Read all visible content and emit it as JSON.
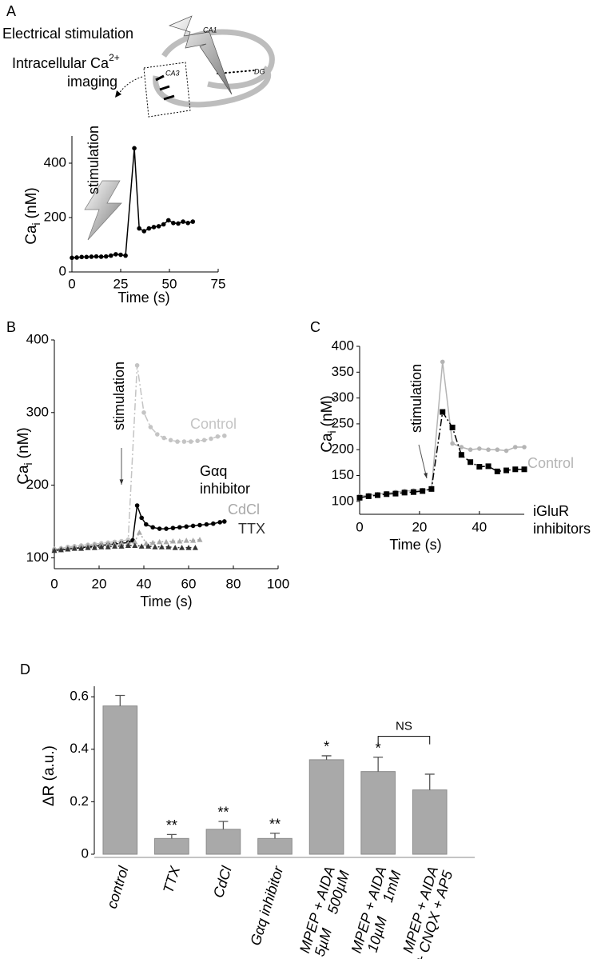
{
  "schematic": {
    "stimulation_label": "Electrical stimulation",
    "imaging_label": [
      "Intracellular Ca",
      "2+",
      "imaging"
    ],
    "regions": [
      "CA1",
      "DG",
      "CA3"
    ]
  },
  "chart_data": [
    {
      "panel": "A",
      "type": "line",
      "annotation": "stimulation",
      "xlabel": "Time (s)",
      "ylabel": {
        "text": "Ca",
        "sub": "i",
        "unit": "(nM)"
      },
      "xlim": [
        0,
        75
      ],
      "xticks": [
        0,
        25,
        50,
        75
      ],
      "ylim": [
        0,
        500
      ],
      "yticks": [
        0,
        200,
        400
      ],
      "series": [
        {
          "color": "#000000",
          "marker": "circle",
          "x": [
            0,
            2.5,
            5,
            7.5,
            10,
            12.5,
            15,
            17.5,
            20,
            22.5,
            25,
            27.5,
            32,
            34.5,
            37,
            39.5,
            42,
            44.5,
            47,
            49.5,
            52,
            54.5,
            57,
            59.5,
            62
          ],
          "values": [
            52,
            53,
            55,
            55,
            56,
            57,
            56,
            57,
            60,
            65,
            63,
            60,
            455,
            160,
            150,
            160,
            165,
            168,
            175,
            190,
            180,
            178,
            185,
            180,
            185
          ]
        }
      ]
    },
    {
      "panel": "B",
      "type": "line",
      "annotation": "stimulation",
      "xlabel": "Time (s)",
      "ylabel": {
        "text": "Ca",
        "sub": "i",
        "unit": "(nM)"
      },
      "xlim": [
        0,
        100
      ],
      "xticks": [
        0,
        20,
        40,
        60,
        80,
        100
      ],
      "ylim": [
        85,
        400
      ],
      "yticks": [
        100,
        200,
        300,
        400
      ],
      "series": [
        {
          "name": "Control",
          "color": "#c4c4c4",
          "marker": "circle",
          "dash": "9 3 2 3",
          "x": [
            0,
            3,
            6,
            9,
            12,
            15,
            18,
            21,
            24,
            27,
            30,
            33,
            37,
            40,
            43,
            46,
            49,
            52,
            55,
            58,
            61,
            64,
            67,
            70,
            73,
            76
          ],
          "values": [
            112,
            113,
            115,
            116,
            117,
            118,
            119,
            120,
            121,
            122,
            123,
            125,
            365,
            300,
            280,
            270,
            265,
            262,
            260,
            260,
            260,
            261,
            262,
            264,
            267,
            268
          ]
        },
        {
          "name": "Gαq inhibitor",
          "color": "#000000",
          "marker": "circle",
          "x": [
            0,
            3,
            6,
            9,
            12,
            15,
            18,
            21,
            24,
            27,
            30,
            33,
            35,
            37,
            39,
            41,
            44,
            47,
            50,
            53,
            56,
            59,
            62,
            65,
            68,
            71,
            74,
            76
          ],
          "values": [
            110,
            111,
            112,
            113,
            114,
            115,
            116,
            117,
            118,
            119,
            120,
            121,
            124,
            172,
            155,
            146,
            142,
            140,
            140,
            141,
            142,
            143,
            144,
            145,
            146,
            147,
            149,
            150
          ]
        },
        {
          "name": "CdCl",
          "color": "#a8a8a8",
          "marker": "triangle",
          "dash": "2 3",
          "x": [
            0,
            3,
            6,
            9,
            12,
            15,
            18,
            21,
            24,
            27,
            30,
            33,
            36,
            38,
            41,
            44,
            47,
            50,
            53,
            56,
            59,
            62,
            65
          ],
          "values": [
            112,
            113,
            114,
            115,
            116,
            117,
            118,
            118,
            119,
            119,
            120,
            120,
            122,
            135,
            120,
            121,
            122,
            122,
            123,
            123,
            124,
            124,
            125
          ]
        },
        {
          "name": "TTX",
          "color": "#333333",
          "marker": "triangle",
          "dash": "2 3",
          "x": [
            0,
            3,
            6,
            9,
            12,
            15,
            18,
            21,
            24,
            27,
            30,
            33,
            36,
            39,
            42,
            45,
            48,
            51,
            54,
            57,
            60,
            63
          ],
          "values": [
            110,
            111,
            112,
            113,
            113,
            114,
            114,
            115,
            115,
            116,
            116,
            117,
            117,
            116,
            116,
            115,
            115,
            115,
            114,
            114,
            114,
            114
          ]
        }
      ]
    },
    {
      "panel": "C",
      "type": "line",
      "annotation": "stimulation",
      "xlabel": "Time (s)",
      "ylabel": {
        "text": "Ca",
        "sub": "i",
        "unit": "(nM)"
      },
      "xlim": [
        0,
        55
      ],
      "xticks": [
        0,
        20,
        40
      ],
      "ylim": [
        75,
        400
      ],
      "yticks": [
        100,
        150,
        200,
        250,
        300,
        350,
        400
      ],
      "series": [
        {
          "name": "Control",
          "color": "#b4b4b4",
          "marker": "circle",
          "x": [
            0,
            3,
            6,
            9,
            12,
            15,
            18,
            21,
            24,
            27.7,
            31,
            34,
            37,
            40,
            43,
            46,
            49,
            52,
            55
          ],
          "values": [
            110,
            112,
            114,
            116,
            118,
            120,
            121,
            122,
            123,
            370,
            212,
            205,
            200,
            202,
            200,
            200,
            198,
            205,
            205
          ]
        },
        {
          "name": "iGluR inhibitors",
          "color": "#000000",
          "marker": "square",
          "dash": "9 3 2 3",
          "x": [
            0,
            3,
            6,
            9,
            12,
            15,
            18,
            21,
            24,
            27.7,
            31,
            34,
            37,
            40,
            43,
            46,
            49,
            52,
            55
          ],
          "values": [
            107,
            110,
            112,
            114,
            115,
            117,
            118,
            120,
            124,
            273,
            243,
            190,
            176,
            167,
            168,
            158,
            160,
            162,
            162
          ]
        }
      ]
    },
    {
      "panel": "D",
      "type": "bar",
      "ylabel": "ΔR (a.u.)",
      "categories": [
        [
          "control"
        ],
        [
          "TTX"
        ],
        [
          "CdCl"
        ],
        [
          "Gαq inhibitor"
        ],
        [
          "MPEP + AIDA",
          "5µM    500µM"
        ],
        [
          "MPEP + AIDA",
          "10µM    1mM"
        ],
        [
          "MPEP + AIDA",
          "+ CNQX + AP5"
        ]
      ],
      "values": [
        0.565,
        0.06,
        0.095,
        0.06,
        0.36,
        0.315,
        0.245
      ],
      "errors": [
        0.04,
        0.015,
        0.03,
        0.02,
        0.015,
        0.055,
        0.06
      ],
      "significance": [
        null,
        "**",
        "**",
        "**",
        "*",
        "*",
        null
      ],
      "bracket_label": "NS",
      "color": "#a9a9a9",
      "error_color": "#555555",
      "ylim": [
        0,
        0.64
      ],
      "yticks": [
        0,
        0.2,
        0.4,
        0.6
      ]
    }
  ]
}
